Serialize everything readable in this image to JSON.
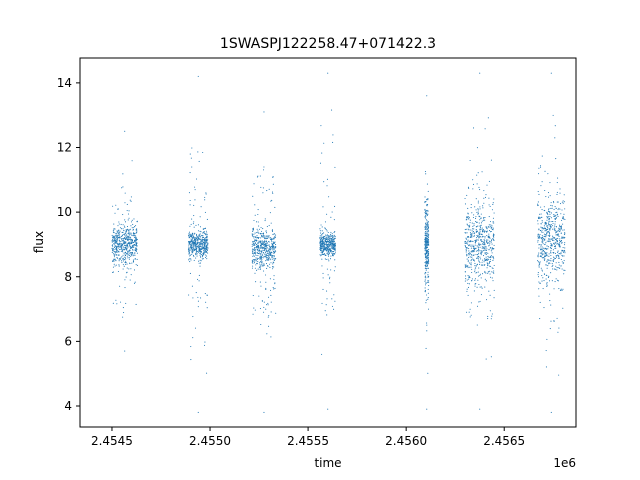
{
  "chart_data": {
    "type": "scatter",
    "title": "1SWASPJ122258.47+071422.3",
    "xlabel": "time",
    "ylabel": "flux",
    "x_offset_label": "1e6",
    "xlim": [
      2454337,
      2456866
    ],
    "ylim": [
      3.35,
      14.77
    ],
    "x_ticks": [
      {
        "value": 2454500,
        "label": "2.4545"
      },
      {
        "value": 2455000,
        "label": "2.4550"
      },
      {
        "value": 2455500,
        "label": "2.4555"
      },
      {
        "value": 2456000,
        "label": "2.4560"
      },
      {
        "value": 2456500,
        "label": "2.4565"
      }
    ],
    "y_ticks": [
      {
        "value": 4,
        "label": "4"
      },
      {
        "value": 6,
        "label": "6"
      },
      {
        "value": 8,
        "label": "8"
      },
      {
        "value": 10,
        "label": "10"
      },
      {
        "value": 12,
        "label": "12"
      },
      {
        "value": 14,
        "label": "14"
      }
    ],
    "grid": false,
    "legend": "none",
    "marker_color": "#1f77b4",
    "series": [
      {
        "observing_seasons": [
          {
            "t_start": 2454500,
            "t_end": 2454630,
            "median_flux": 9.0,
            "core_min": 8.3,
            "core_max": 9.7,
            "min_flux": 5.7,
            "max_flux": 12.5
          },
          {
            "t_start": 2454890,
            "t_end": 2454990,
            "median_flux": 9.0,
            "core_min": 8.5,
            "core_max": 9.5,
            "min_flux": 3.8,
            "max_flux": 14.2
          },
          {
            "t_start": 2455215,
            "t_end": 2455335,
            "median_flux": 8.9,
            "core_min": 8.2,
            "core_max": 9.6,
            "min_flux": 3.8,
            "max_flux": 13.1
          },
          {
            "t_start": 2455560,
            "t_end": 2455640,
            "median_flux": 9.0,
            "core_min": 8.6,
            "core_max": 9.4,
            "min_flux": 3.9,
            "max_flux": 14.3
          },
          {
            "t_start": 2456095,
            "t_end": 2456115,
            "median_flux": 9.0,
            "core_min": 7.5,
            "core_max": 10.5,
            "min_flux": 3.9,
            "max_flux": 13.6
          },
          {
            "t_start": 2456300,
            "t_end": 2456450,
            "median_flux": 9.0,
            "core_min": 7.6,
            "core_max": 10.4,
            "min_flux": 3.9,
            "max_flux": 14.3
          },
          {
            "t_start": 2456670,
            "t_end": 2456810,
            "median_flux": 9.2,
            "core_min": 7.8,
            "core_max": 10.6,
            "min_flux": 3.8,
            "max_flux": 14.3
          }
        ]
      }
    ]
  }
}
